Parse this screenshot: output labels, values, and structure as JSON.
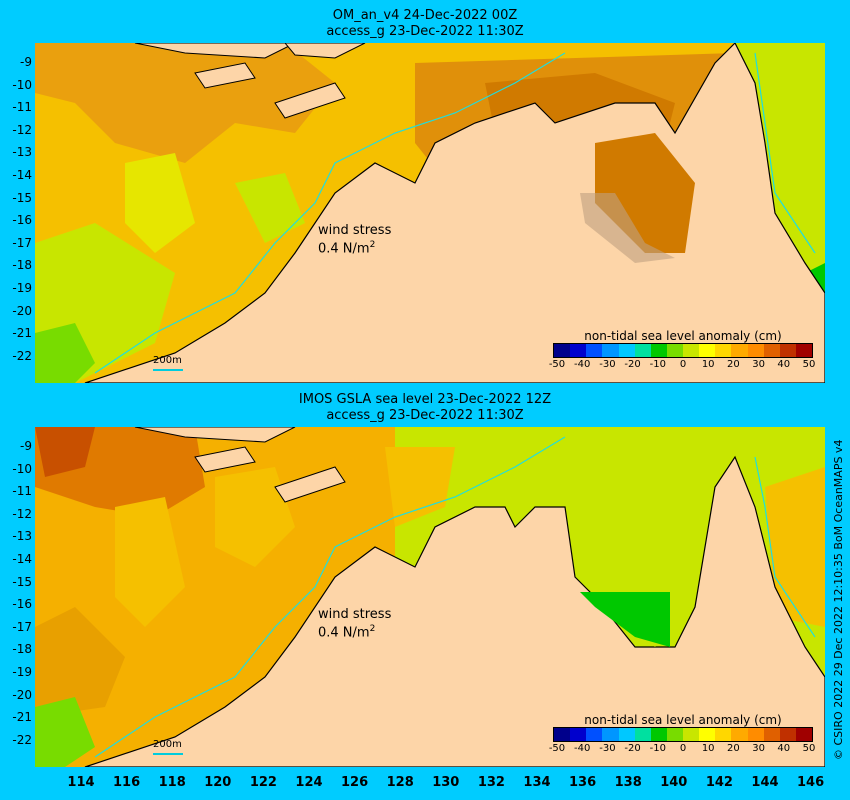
{
  "top_panel": {
    "title_line1": "OM_an_v4  24-Dec-2022 00Z",
    "title_line2": "access_g 23-Dec-2022 11:30Z",
    "wind_label_line1": "wind stress",
    "wind_label_line2": "0.4 N/m",
    "wind_label_exp": "2",
    "scale_label": "200m",
    "colorbar_label": "non-tidal sea level anomaly (cm)"
  },
  "bottom_panel": {
    "title_line1": "IMOS GSLA sea level  23-Dec-2022 12Z",
    "title_line2": "access_g 23-Dec-2022 11:30Z",
    "wind_label_line1": "wind stress",
    "wind_label_line2": "0.4 N/m",
    "wind_label_exp": "2",
    "scale_label": "200m",
    "colorbar_label": "non-tidal sea level anomaly (cm)"
  },
  "colorbar": {
    "ticks": [
      "-50",
      "-40",
      "-30",
      "-20",
      "-10",
      "0",
      "10",
      "20",
      "30",
      "40",
      "50"
    ],
    "colors": [
      "#00008b",
      "#0000cd",
      "#0050ff",
      "#0096ff",
      "#00c8ff",
      "#00e0a0",
      "#00c800",
      "#78dc00",
      "#c8e600",
      "#ffff00",
      "#ffd700",
      "#ffaa00",
      "#ff8c00",
      "#e06000",
      "#c03000",
      "#a00000"
    ]
  },
  "axes": {
    "y_ticks": [
      "-9",
      "-10",
      "-11",
      "-12",
      "-13",
      "-14",
      "-15",
      "-16",
      "-17",
      "-18",
      "-19",
      "-20",
      "-21",
      "-22"
    ],
    "x_ticks": [
      "114",
      "116",
      "118",
      "120",
      "122",
      "124",
      "126",
      "128",
      "130",
      "132",
      "134",
      "136",
      "138",
      "140",
      "142",
      "144",
      "146"
    ]
  },
  "credit": "© CSIRO 2022   29 Dec 2022 12:10:35 BoM OceanMAPS v4",
  "colors": {
    "land": "#fdd5a8",
    "background": "#00ccff",
    "isobath": "#22dddd"
  }
}
